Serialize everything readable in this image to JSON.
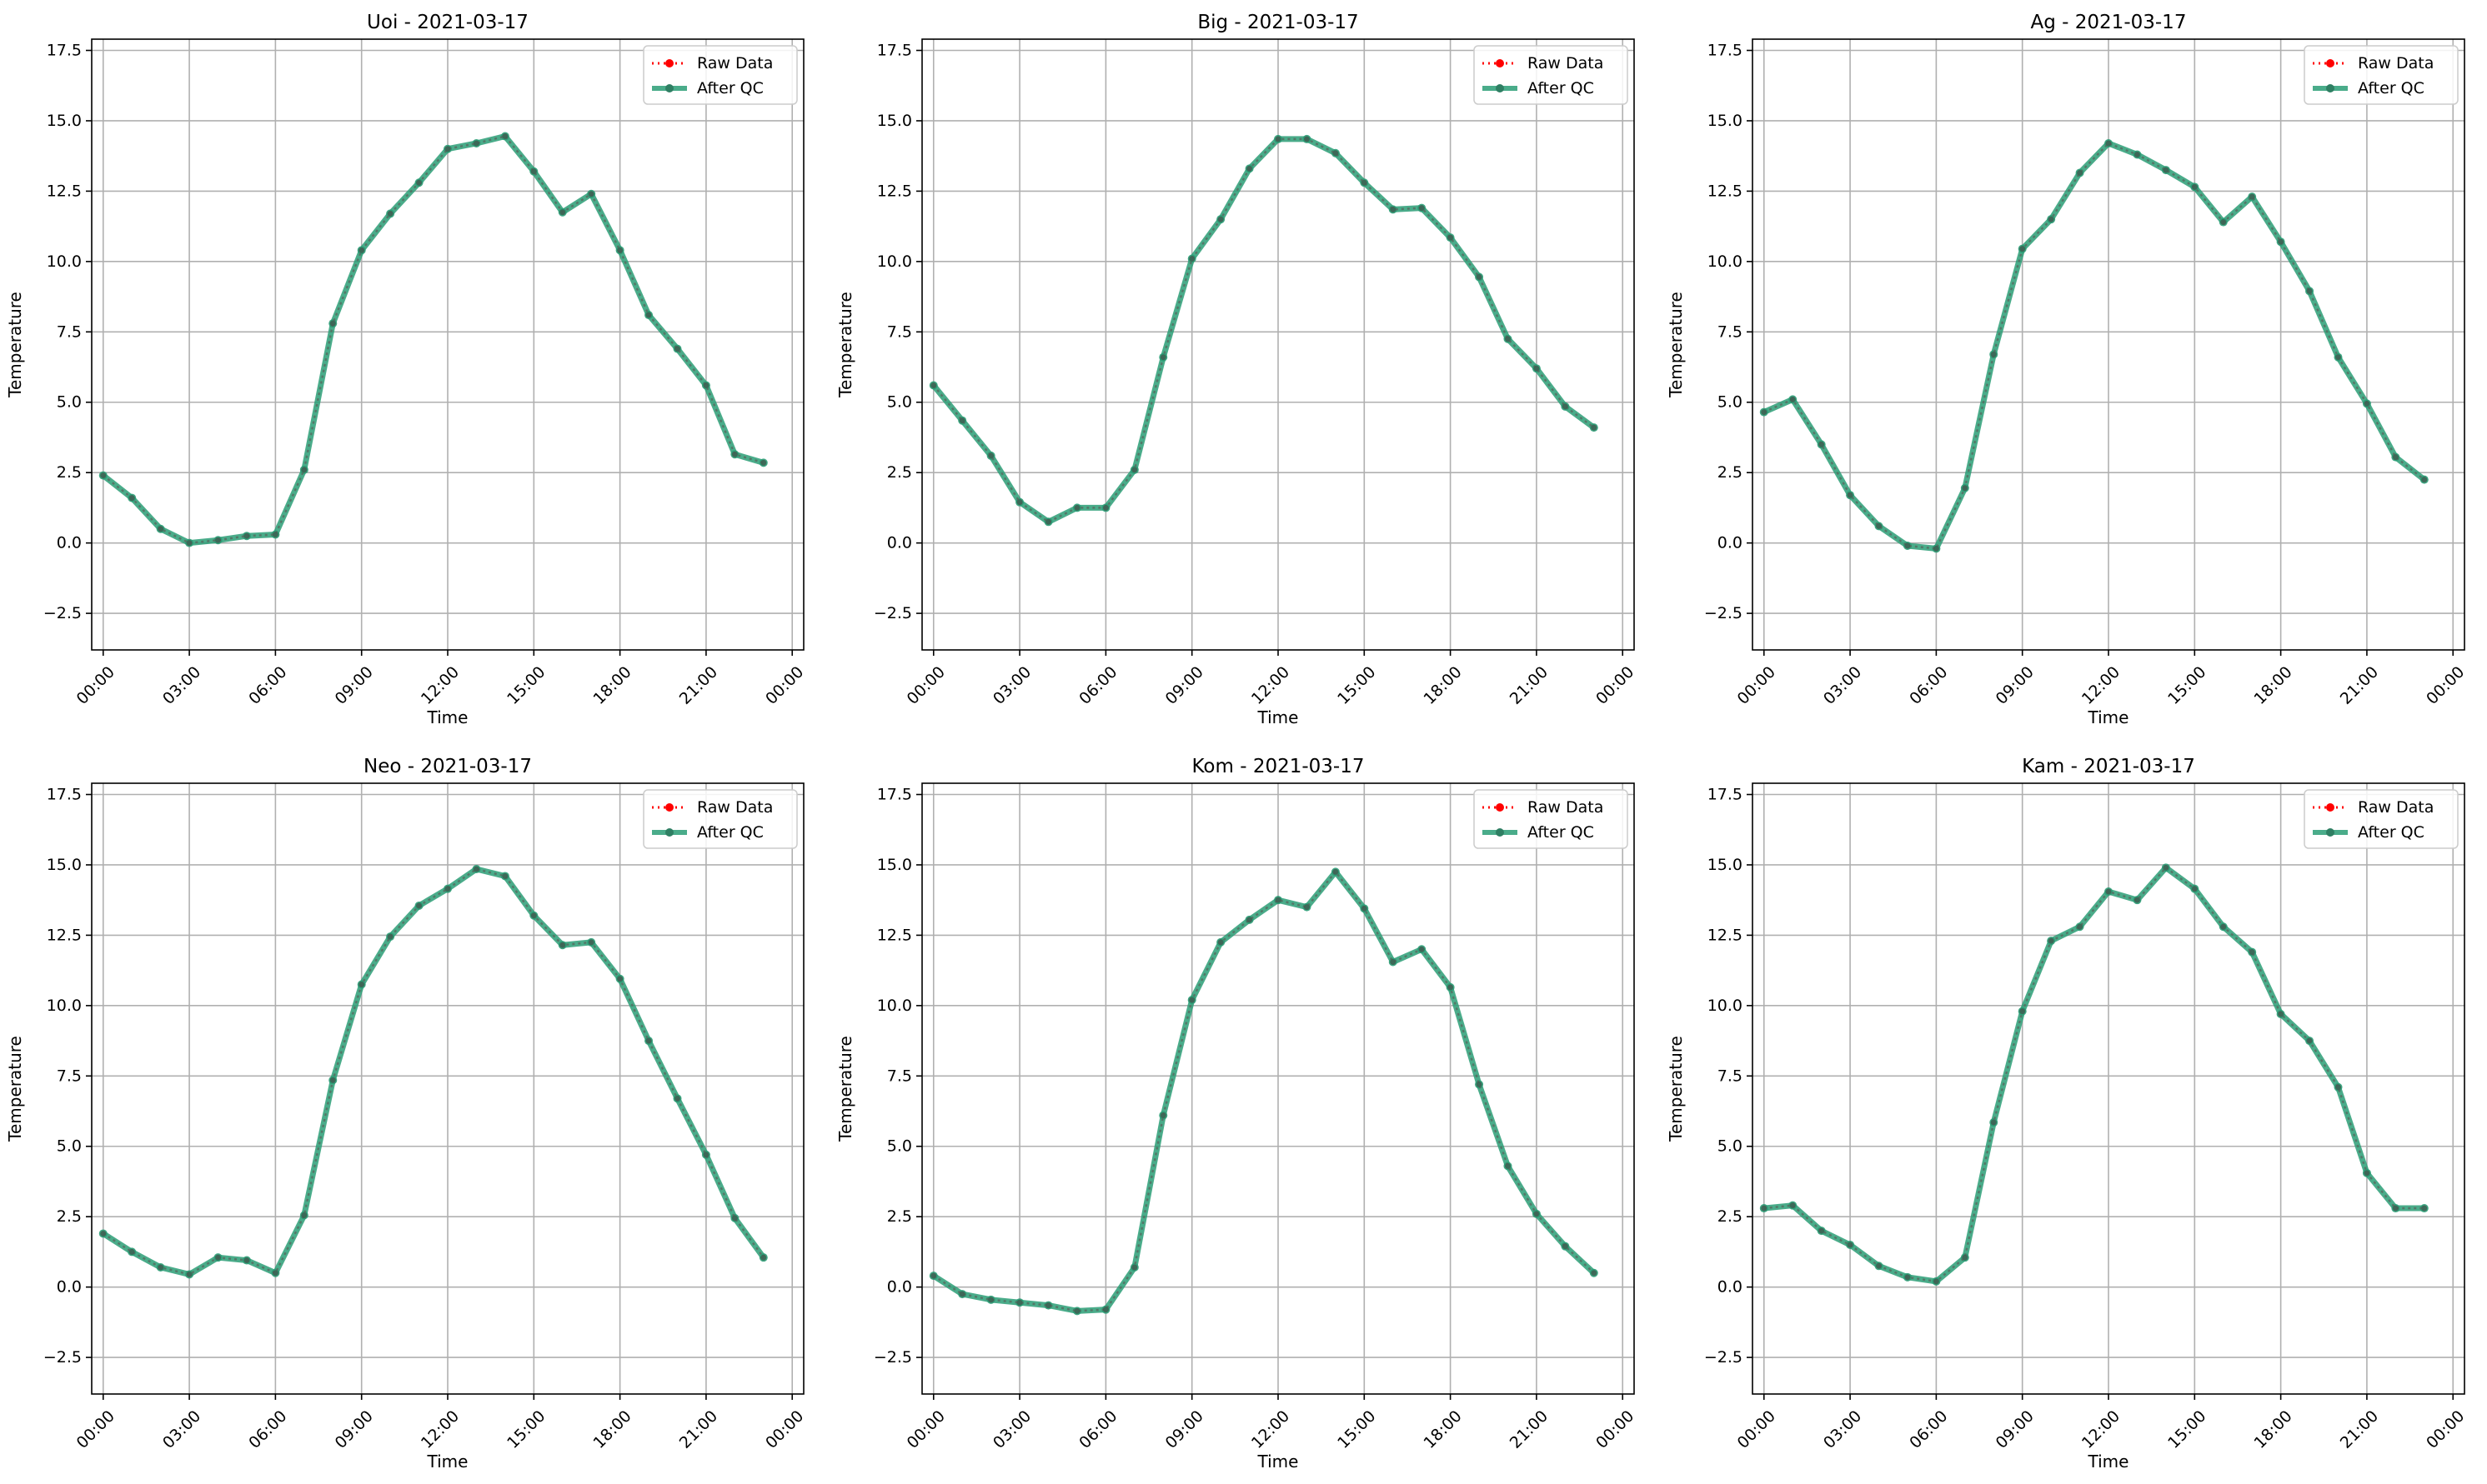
{
  "chart_data": [
    {
      "type": "line",
      "title": "Uoi - 2021-03-17",
      "xlabel": "Time",
      "ylabel": "Temperature",
      "x": [
        "00:00",
        "01:00",
        "02:00",
        "03:00",
        "04:00",
        "05:00",
        "06:00",
        "07:00",
        "08:00",
        "09:00",
        "10:00",
        "11:00",
        "12:00",
        "13:00",
        "14:00",
        "15:00",
        "16:00",
        "17:00",
        "18:00",
        "19:00",
        "20:00",
        "21:00",
        "22:00",
        "23:00"
      ],
      "xticks": [
        "00:00",
        "03:00",
        "06:00",
        "09:00",
        "12:00",
        "15:00",
        "18:00",
        "21:00",
        "00:00"
      ],
      "yticks": [
        "−2.5",
        "0.0",
        "2.5",
        "5.0",
        "7.5",
        "10.0",
        "12.5",
        "15.0",
        "17.5"
      ],
      "ylim": [
        -3.8,
        17.9
      ],
      "grid": true,
      "legend_position": "top-right",
      "series": [
        {
          "name": "Raw Data",
          "values": [
            2.4,
            1.6,
            0.5,
            0.0,
            0.1,
            0.25,
            0.3,
            2.6,
            7.8,
            10.4,
            11.7,
            12.8,
            14.0,
            14.2,
            14.45,
            13.2,
            11.75,
            12.4,
            10.4,
            8.1,
            6.9,
            5.6,
            3.15,
            2.85
          ]
        },
        {
          "name": "After QC",
          "values": [
            2.4,
            1.6,
            0.5,
            0.0,
            0.1,
            0.25,
            0.3,
            2.6,
            7.8,
            10.4,
            11.7,
            12.8,
            14.0,
            14.2,
            14.45,
            13.2,
            11.75,
            12.4,
            10.4,
            8.1,
            6.9,
            5.6,
            3.15,
            2.85
          ]
        }
      ]
    },
    {
      "type": "line",
      "title": "Big - 2021-03-17",
      "xlabel": "Time",
      "ylabel": "Temperature",
      "x": [
        "00:00",
        "01:00",
        "02:00",
        "03:00",
        "04:00",
        "05:00",
        "06:00",
        "07:00",
        "08:00",
        "09:00",
        "10:00",
        "11:00",
        "12:00",
        "13:00",
        "14:00",
        "15:00",
        "16:00",
        "17:00",
        "18:00",
        "19:00",
        "20:00",
        "21:00",
        "22:00",
        "23:00"
      ],
      "xticks": [
        "00:00",
        "03:00",
        "06:00",
        "09:00",
        "12:00",
        "15:00",
        "18:00",
        "21:00",
        "00:00"
      ],
      "yticks": [
        "−2.5",
        "0.0",
        "2.5",
        "5.0",
        "7.5",
        "10.0",
        "12.5",
        "15.0",
        "17.5"
      ],
      "ylim": [
        -3.8,
        17.9
      ],
      "grid": true,
      "legend_position": "top-right",
      "series": [
        {
          "name": "Raw Data",
          "values": [
            5.6,
            4.35,
            3.1,
            1.45,
            0.75,
            1.25,
            1.25,
            2.6,
            6.6,
            10.1,
            11.5,
            13.3,
            14.35,
            14.35,
            13.85,
            12.8,
            11.85,
            11.9,
            10.85,
            9.45,
            7.25,
            6.2,
            4.85,
            4.1
          ]
        },
        {
          "name": "After QC",
          "values": [
            5.6,
            4.35,
            3.1,
            1.45,
            0.75,
            1.25,
            1.25,
            2.6,
            6.6,
            10.1,
            11.5,
            13.3,
            14.35,
            14.35,
            13.85,
            12.8,
            11.85,
            11.9,
            10.85,
            9.45,
            7.25,
            6.2,
            4.85,
            4.1
          ]
        }
      ]
    },
    {
      "type": "line",
      "title": "Ag - 2021-03-17",
      "xlabel": "Time",
      "ylabel": "Temperature",
      "x": [
        "00:00",
        "01:00",
        "02:00",
        "03:00",
        "04:00",
        "05:00",
        "06:00",
        "07:00",
        "08:00",
        "09:00",
        "10:00",
        "11:00",
        "12:00",
        "13:00",
        "14:00",
        "15:00",
        "16:00",
        "17:00",
        "18:00",
        "19:00",
        "20:00",
        "21:00",
        "22:00",
        "23:00"
      ],
      "xticks": [
        "00:00",
        "03:00",
        "06:00",
        "09:00",
        "12:00",
        "15:00",
        "18:00",
        "21:00",
        "00:00"
      ],
      "yticks": [
        "−2.5",
        "0.0",
        "2.5",
        "5.0",
        "7.5",
        "10.0",
        "12.5",
        "15.0",
        "17.5"
      ],
      "ylim": [
        -3.8,
        17.9
      ],
      "grid": true,
      "legend_position": "top-right",
      "series": [
        {
          "name": "Raw Data",
          "values": [
            4.65,
            5.1,
            3.5,
            1.7,
            0.6,
            -0.1,
            -0.2,
            1.95,
            6.7,
            10.45,
            11.5,
            13.15,
            14.2,
            13.8,
            13.25,
            12.65,
            11.4,
            12.3,
            10.7,
            8.95,
            6.6,
            4.95,
            3.05,
            2.25
          ]
        },
        {
          "name": "After QC",
          "values": [
            4.65,
            5.1,
            3.5,
            1.7,
            0.6,
            -0.1,
            -0.2,
            1.95,
            6.7,
            10.45,
            11.5,
            13.15,
            14.2,
            13.8,
            13.25,
            12.65,
            11.4,
            12.3,
            10.7,
            8.95,
            6.6,
            4.95,
            3.05,
            2.25
          ]
        }
      ]
    },
    {
      "type": "line",
      "title": "Neo - 2021-03-17",
      "xlabel": "Time",
      "ylabel": "Temperature",
      "x": [
        "00:00",
        "01:00",
        "02:00",
        "03:00",
        "04:00",
        "05:00",
        "06:00",
        "07:00",
        "08:00",
        "09:00",
        "10:00",
        "11:00",
        "12:00",
        "13:00",
        "14:00",
        "15:00",
        "16:00",
        "17:00",
        "18:00",
        "19:00",
        "20:00",
        "21:00",
        "22:00",
        "23:00"
      ],
      "xticks": [
        "00:00",
        "03:00",
        "06:00",
        "09:00",
        "12:00",
        "15:00",
        "18:00",
        "21:00",
        "00:00"
      ],
      "yticks": [
        "−2.5",
        "0.0",
        "2.5",
        "5.0",
        "7.5",
        "10.0",
        "12.5",
        "15.0",
        "17.5"
      ],
      "ylim": [
        -3.8,
        17.9
      ],
      "grid": true,
      "legend_position": "top-right",
      "series": [
        {
          "name": "Raw Data",
          "values": [
            1.9,
            1.25,
            0.7,
            0.45,
            1.05,
            0.95,
            0.5,
            2.55,
            7.35,
            10.75,
            12.45,
            13.55,
            14.15,
            14.85,
            14.6,
            13.2,
            12.15,
            12.25,
            10.95,
            8.75,
            6.7,
            4.7,
            2.45,
            1.05
          ]
        },
        {
          "name": "After QC",
          "values": [
            1.9,
            1.25,
            0.7,
            0.45,
            1.05,
            0.95,
            0.5,
            2.55,
            7.35,
            10.75,
            12.45,
            13.55,
            14.15,
            14.85,
            14.6,
            13.2,
            12.15,
            12.25,
            10.95,
            8.75,
            6.7,
            4.7,
            2.45,
            1.05
          ]
        }
      ]
    },
    {
      "type": "line",
      "title": "Kom - 2021-03-17",
      "xlabel": "Time",
      "ylabel": "Temperature",
      "x": [
        "00:00",
        "01:00",
        "02:00",
        "03:00",
        "04:00",
        "05:00",
        "06:00",
        "07:00",
        "08:00",
        "09:00",
        "10:00",
        "11:00",
        "12:00",
        "13:00",
        "14:00",
        "15:00",
        "16:00",
        "17:00",
        "18:00",
        "19:00",
        "20:00",
        "21:00",
        "22:00",
        "23:00"
      ],
      "xticks": [
        "00:00",
        "03:00",
        "06:00",
        "09:00",
        "12:00",
        "15:00",
        "18:00",
        "21:00",
        "00:00"
      ],
      "yticks": [
        "−2.5",
        "0.0",
        "2.5",
        "5.0",
        "7.5",
        "10.0",
        "12.5",
        "15.0",
        "17.5"
      ],
      "ylim": [
        -3.8,
        17.9
      ],
      "grid": true,
      "legend_position": "top-right",
      "series": [
        {
          "name": "Raw Data",
          "values": [
            0.4,
            -0.25,
            -0.45,
            -0.55,
            -0.65,
            -0.85,
            -0.8,
            0.7,
            6.1,
            10.2,
            12.25,
            13.05,
            13.75,
            13.5,
            14.75,
            13.45,
            11.55,
            12.0,
            10.65,
            7.2,
            4.3,
            2.6,
            1.45,
            0.5
          ]
        },
        {
          "name": "After QC",
          "values": [
            0.4,
            -0.25,
            -0.45,
            -0.55,
            -0.65,
            -0.85,
            -0.8,
            0.7,
            6.1,
            10.2,
            12.25,
            13.05,
            13.75,
            13.5,
            14.75,
            13.45,
            11.55,
            12.0,
            10.65,
            7.2,
            4.3,
            2.6,
            1.45,
            0.5
          ]
        }
      ]
    },
    {
      "type": "line",
      "title": "Kam - 2021-03-17",
      "xlabel": "Time",
      "ylabel": "Temperature",
      "x": [
        "00:00",
        "01:00",
        "02:00",
        "03:00",
        "04:00",
        "05:00",
        "06:00",
        "07:00",
        "08:00",
        "09:00",
        "10:00",
        "11:00",
        "12:00",
        "13:00",
        "14:00",
        "15:00",
        "16:00",
        "17:00",
        "18:00",
        "19:00",
        "20:00",
        "21:00",
        "22:00",
        "23:00"
      ],
      "xticks": [
        "00:00",
        "03:00",
        "06:00",
        "09:00",
        "12:00",
        "15:00",
        "18:00",
        "21:00",
        "00:00"
      ],
      "yticks": [
        "−2.5",
        "0.0",
        "2.5",
        "5.0",
        "7.5",
        "10.0",
        "12.5",
        "15.0",
        "17.5"
      ],
      "ylim": [
        -3.8,
        17.9
      ],
      "grid": true,
      "legend_position": "top-right",
      "series": [
        {
          "name": "Raw Data",
          "values": [
            2.8,
            2.9,
            2.0,
            1.5,
            0.75,
            0.35,
            0.2,
            1.05,
            5.85,
            9.8,
            12.3,
            12.8,
            14.05,
            13.75,
            14.9,
            14.15,
            12.8,
            11.9,
            9.7,
            8.75,
            7.1,
            4.05,
            2.8,
            2.8
          ]
        },
        {
          "name": "After QC",
          "values": [
            2.8,
            2.9,
            2.0,
            1.5,
            0.75,
            0.35,
            0.2,
            1.05,
            5.85,
            9.8,
            12.3,
            12.8,
            14.05,
            13.75,
            14.9,
            14.15,
            12.8,
            11.9,
            9.7,
            8.75,
            7.1,
            4.05,
            2.8,
            2.8
          ]
        }
      ]
    }
  ],
  "colors": {
    "raw": "#ff0000",
    "qc": "#2a9d76",
    "grid": "#b0b0b0",
    "axes": "#000000"
  }
}
